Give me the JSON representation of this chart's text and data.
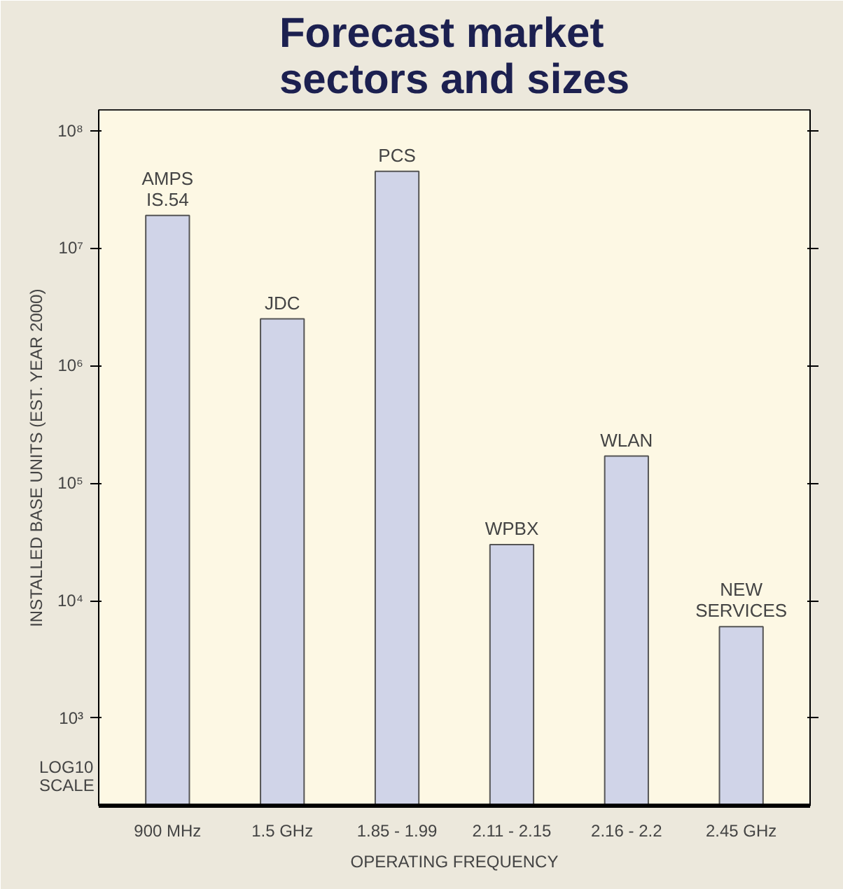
{
  "chart_data": {
    "type": "bar",
    "title": "Forecast market\nsectors and sizes",
    "categories": [
      "900 MHz",
      "1.5 GHz",
      "1.85 - 1.99",
      "2.11 - 2.15",
      "2.16 - 2.2",
      "2.45 GHz"
    ],
    "values": [
      19000000,
      2500000,
      45000000,
      30000,
      170000,
      6000
    ],
    "color": "#d0d4e8",
    "xlabel": "OPERATING FREQUENCY",
    "ylabel": "INSTALLED BASE UNITS (EST. YEAR 2000)",
    "log": "y",
    "ylim": [
      180,
      150000000
    ],
    "yticks": [
      {
        "value": 1000,
        "label": "10³"
      },
      {
        "value": 10000,
        "label": "10⁴"
      },
      {
        "value": 100000,
        "label": "10⁵"
      },
      {
        "value": 1000000,
        "label": "10⁶"
      },
      {
        "value": 10000000,
        "label": "10⁷"
      },
      {
        "value": 100000000,
        "label": "10⁸"
      }
    ],
    "grid": false,
    "annotations": [
      {
        "text": "AMPS\nIS.54",
        "x": "900 MHz",
        "y": 19000000
      },
      {
        "text": "JDC",
        "x": "1.5 GHz",
        "y": 2500000
      },
      {
        "text": "PCS",
        "x": "1.85 - 1.99",
        "y": 45000000
      },
      {
        "text": "WPBX",
        "x": "2.11 - 2.15",
        "y": 30000
      },
      {
        "text": "WLAN",
        "x": "2.16 - 2.2",
        "y": 170000
      },
      {
        "text": "NEW\nSERVICES",
        "x": "2.45 GHz",
        "y": 6000
      },
      "LOG10\nSCALE"
    ]
  }
}
